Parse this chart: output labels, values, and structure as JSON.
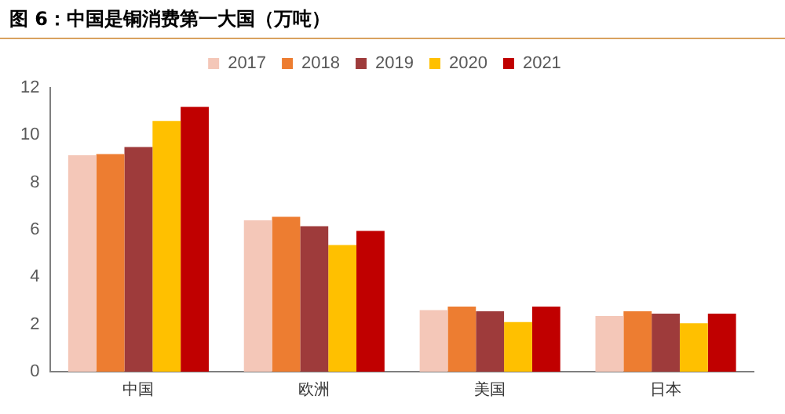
{
  "chart_data": {
    "type": "bar",
    "title": "图 6：中国是铜消费第一大国（万吨）",
    "categories": [
      "中国",
      "欧洲",
      "美国",
      "日本"
    ],
    "series": [
      {
        "name": "2017",
        "color": "#f4c7b8",
        "values": [
          9.15,
          6.4,
          2.6,
          2.35
        ]
      },
      {
        "name": "2018",
        "color": "#ed7d31",
        "values": [
          9.2,
          6.55,
          2.75,
          2.55
        ]
      },
      {
        "name": "2019",
        "color": "#9e3b3b",
        "values": [
          9.5,
          6.15,
          2.55,
          2.45
        ]
      },
      {
        "name": "2020",
        "color": "#ffc000",
        "values": [
          10.6,
          5.35,
          2.1,
          2.05
        ]
      },
      {
        "name": "2021",
        "color": "#c00000",
        "values": [
          11.2,
          5.95,
          2.75,
          2.45
        ]
      }
    ],
    "ylim": [
      0,
      12
    ],
    "yticks": [
      0,
      2,
      4,
      6,
      8,
      10,
      12
    ],
    "grid": false,
    "legend": "top"
  }
}
